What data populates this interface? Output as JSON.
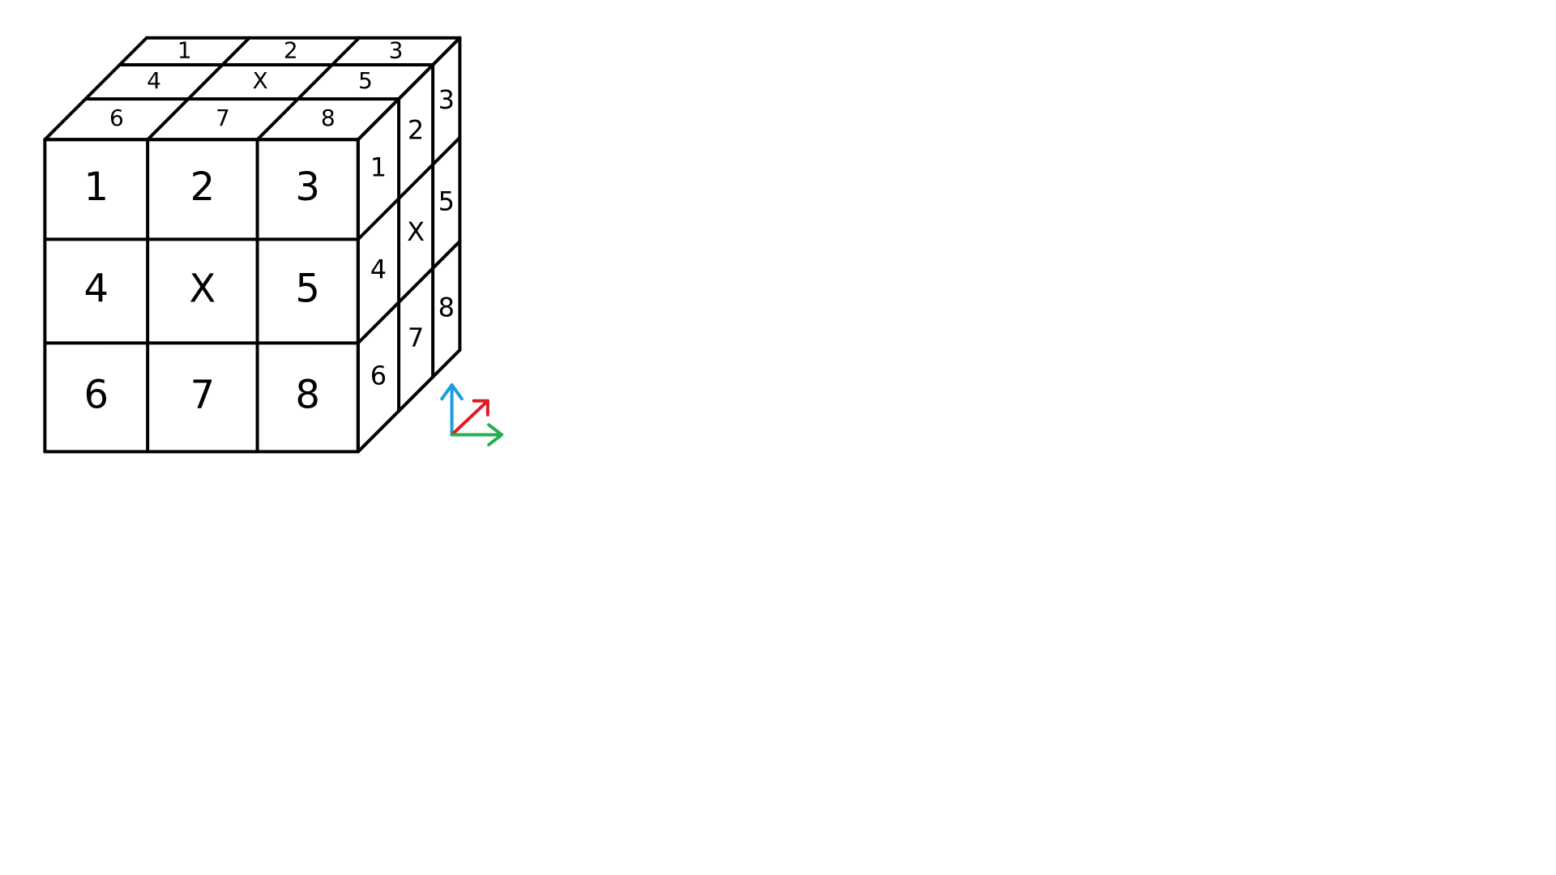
{
  "colors": {
    "background": "#ffffff",
    "stroke": "#000000",
    "axis_up": "#1a9ee0",
    "axis_diagonal": "#e01b24",
    "axis_right": "#21b04b"
  },
  "cube": {
    "front": {
      "rows": [
        [
          "1",
          "2",
          "3"
        ],
        [
          "4",
          "X",
          "5"
        ],
        [
          "6",
          "7",
          "8"
        ]
      ]
    },
    "top": {
      "rows": [
        [
          "1",
          "2",
          "3"
        ],
        [
          "4",
          "X",
          "5"
        ],
        [
          "6",
          "7",
          "8"
        ]
      ]
    },
    "side": {
      "rows": [
        [
          "1",
          "2",
          "3"
        ],
        [
          "4",
          "X",
          "5"
        ],
        [
          "6",
          "7",
          "8"
        ]
      ]
    }
  },
  "axes": {
    "up_icon": "arrow-up-icon",
    "diagonal_icon": "arrow-diagonal-icon",
    "right_icon": "arrow-right-icon"
  }
}
